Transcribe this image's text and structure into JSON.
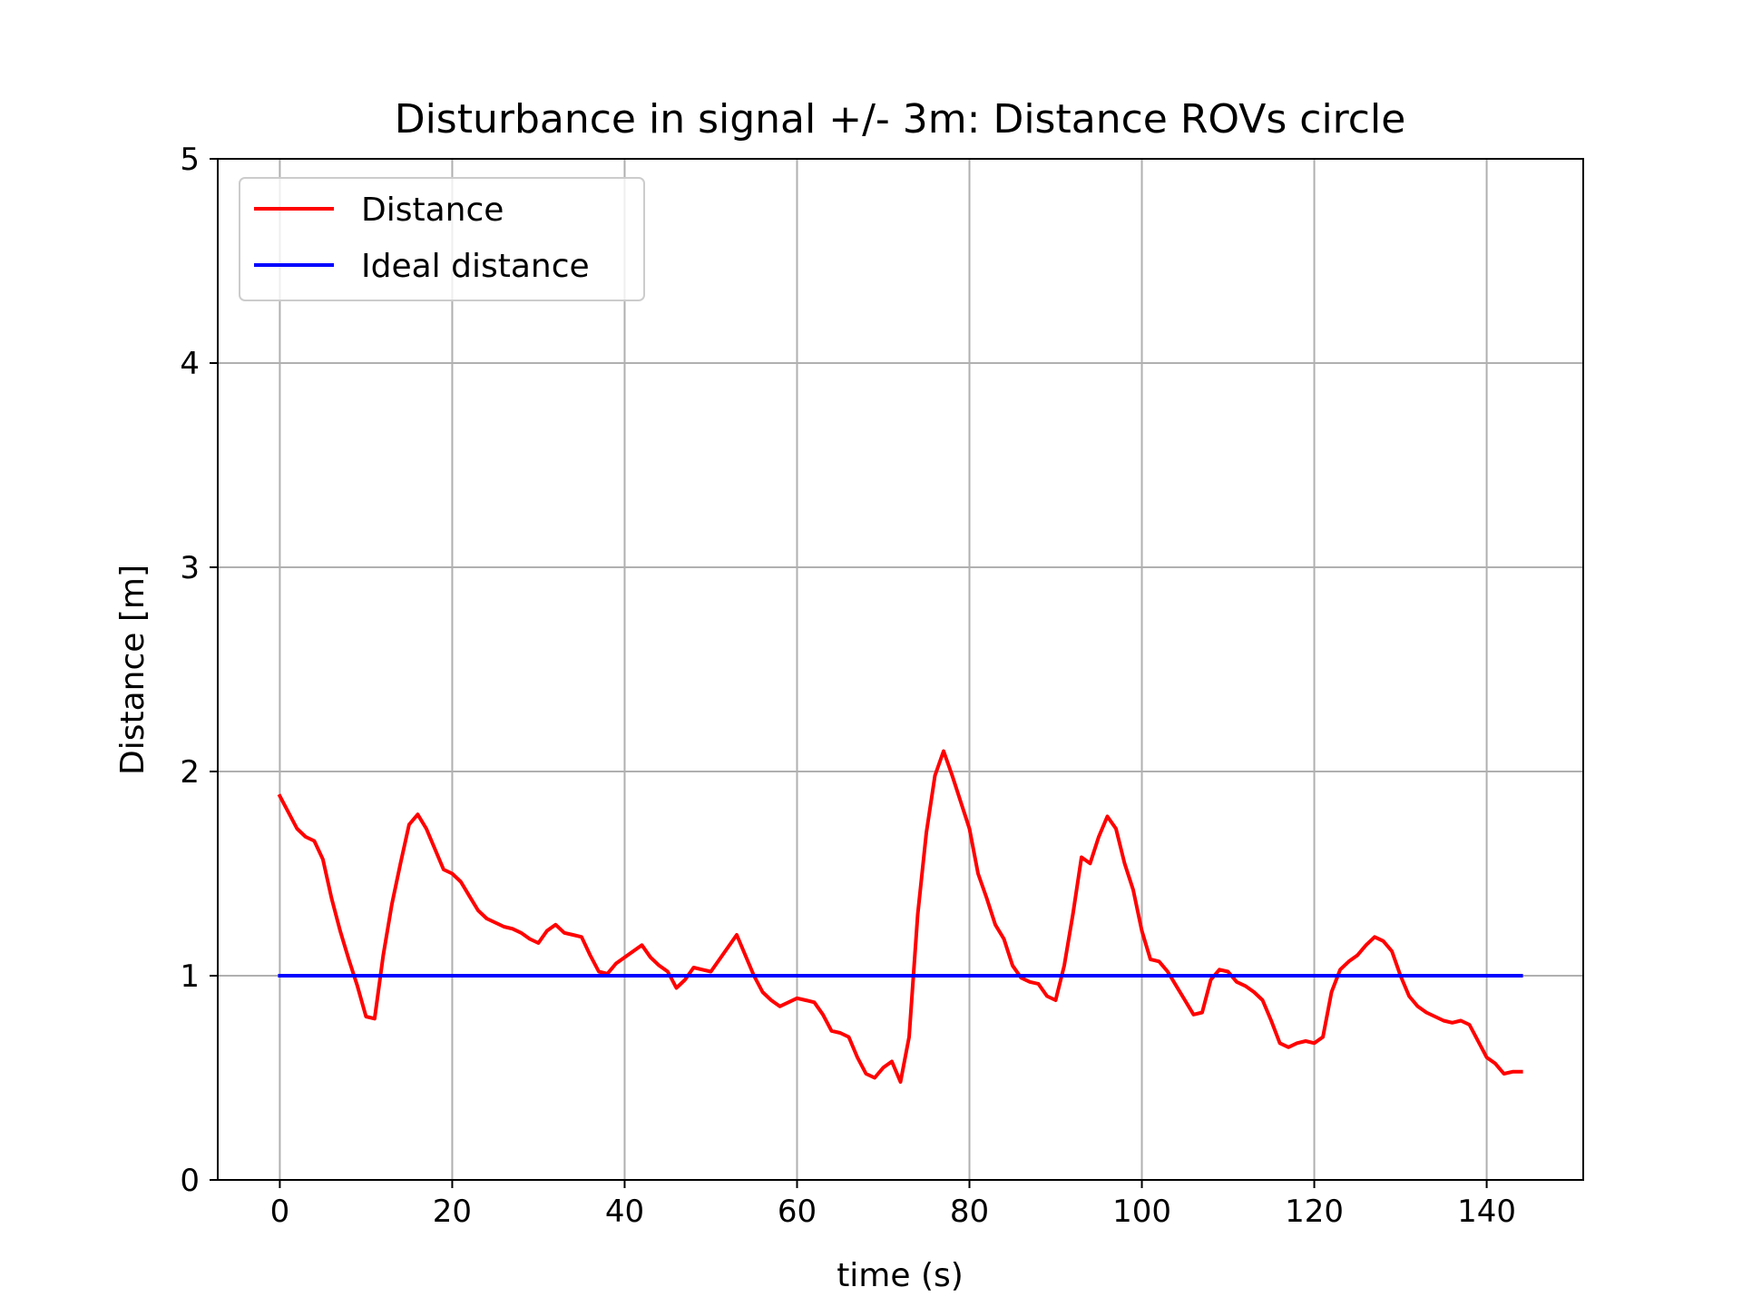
{
  "chart_data": {
    "type": "line",
    "title": "Disturbance in signal +/- 3m: Distance ROVs circle",
    "xlabel": "time (s)",
    "ylabel": "Distance [m]",
    "xlim": [
      -7.2,
      151.2
    ],
    "ylim": [
      0,
      5
    ],
    "xticks": [
      0,
      20,
      40,
      60,
      80,
      100,
      120,
      140
    ],
    "yticks": [
      0,
      1,
      2,
      3,
      4,
      5
    ],
    "grid": true,
    "legend_position": "top-left",
    "series": [
      {
        "name": "Distance",
        "color": "#ff0000",
        "x": [
          0,
          1,
          2,
          3,
          4,
          5,
          6,
          7,
          8,
          9,
          10,
          11,
          12,
          13,
          14,
          15,
          16,
          17,
          18,
          19,
          20,
          21,
          22,
          23,
          24,
          25,
          26,
          27,
          28,
          29,
          30,
          31,
          32,
          33,
          34,
          35,
          36,
          37,
          38,
          39,
          40,
          41,
          42,
          43,
          44,
          45,
          46,
          47,
          48,
          49,
          50,
          51,
          52,
          53,
          54,
          55,
          56,
          57,
          58,
          59,
          60,
          61,
          62,
          63,
          64,
          65,
          66,
          67,
          68,
          69,
          70,
          71,
          72,
          73,
          74,
          75,
          76,
          77,
          78,
          79,
          80,
          81,
          82,
          83,
          84,
          85,
          86,
          87,
          88,
          89,
          90,
          91,
          92,
          93,
          94,
          95,
          96,
          97,
          98,
          99,
          100,
          101,
          102,
          103,
          104,
          105,
          106,
          107,
          108,
          109,
          110,
          111,
          112,
          113,
          114,
          115,
          116,
          117,
          118,
          119,
          120,
          121,
          122,
          123,
          124,
          125,
          126,
          127,
          128,
          129,
          130,
          131,
          132,
          133,
          134,
          135,
          136,
          137,
          138,
          139,
          140,
          141,
          142,
          143,
          144
        ],
        "y": [
          1.88,
          1.8,
          1.72,
          1.68,
          1.66,
          1.57,
          1.38,
          1.22,
          1.08,
          0.95,
          0.8,
          0.79,
          1.1,
          1.35,
          1.55,
          1.74,
          1.79,
          1.72,
          1.62,
          1.52,
          1.5,
          1.46,
          1.39,
          1.32,
          1.28,
          1.26,
          1.24,
          1.23,
          1.21,
          1.18,
          1.16,
          1.22,
          1.25,
          1.21,
          1.2,
          1.19,
          1.1,
          1.02,
          1.01,
          1.06,
          1.09,
          1.12,
          1.15,
          1.09,
          1.05,
          1.02,
          0.94,
          0.98,
          1.04,
          1.03,
          1.02,
          1.08,
          1.14,
          1.2,
          1.1,
          1.0,
          0.92,
          0.88,
          0.85,
          0.87,
          0.89,
          0.88,
          0.87,
          0.81,
          0.73,
          0.72,
          0.7,
          0.6,
          0.52,
          0.5,
          0.55,
          0.58,
          0.48,
          0.7,
          1.3,
          1.7,
          1.98,
          2.1,
          1.98,
          1.85,
          1.72,
          1.5,
          1.38,
          1.25,
          1.18,
          1.05,
          0.99,
          0.97,
          0.96,
          0.9,
          0.88,
          1.05,
          1.3,
          1.58,
          1.55,
          1.68,
          1.78,
          1.72,
          1.55,
          1.42,
          1.22,
          1.08,
          1.07,
          1.02,
          0.95,
          0.88,
          0.81,
          0.82,
          0.98,
          1.03,
          1.02,
          0.97,
          0.95,
          0.92,
          0.88,
          0.78,
          0.67,
          0.65,
          0.67,
          0.68,
          0.67,
          0.7,
          0.92,
          1.03,
          1.07,
          1.1,
          1.15,
          1.19,
          1.17,
          1.12,
          1.0,
          0.9,
          0.85,
          0.82,
          0.8,
          0.78,
          0.77,
          0.78,
          0.76,
          0.68,
          0.6,
          0.57,
          0.52,
          0.53,
          0.53
        ]
      },
      {
        "name": "Ideal distance",
        "color": "#0000ff",
        "x": [
          0,
          144
        ],
        "y": [
          1,
          1
        ]
      }
    ]
  }
}
